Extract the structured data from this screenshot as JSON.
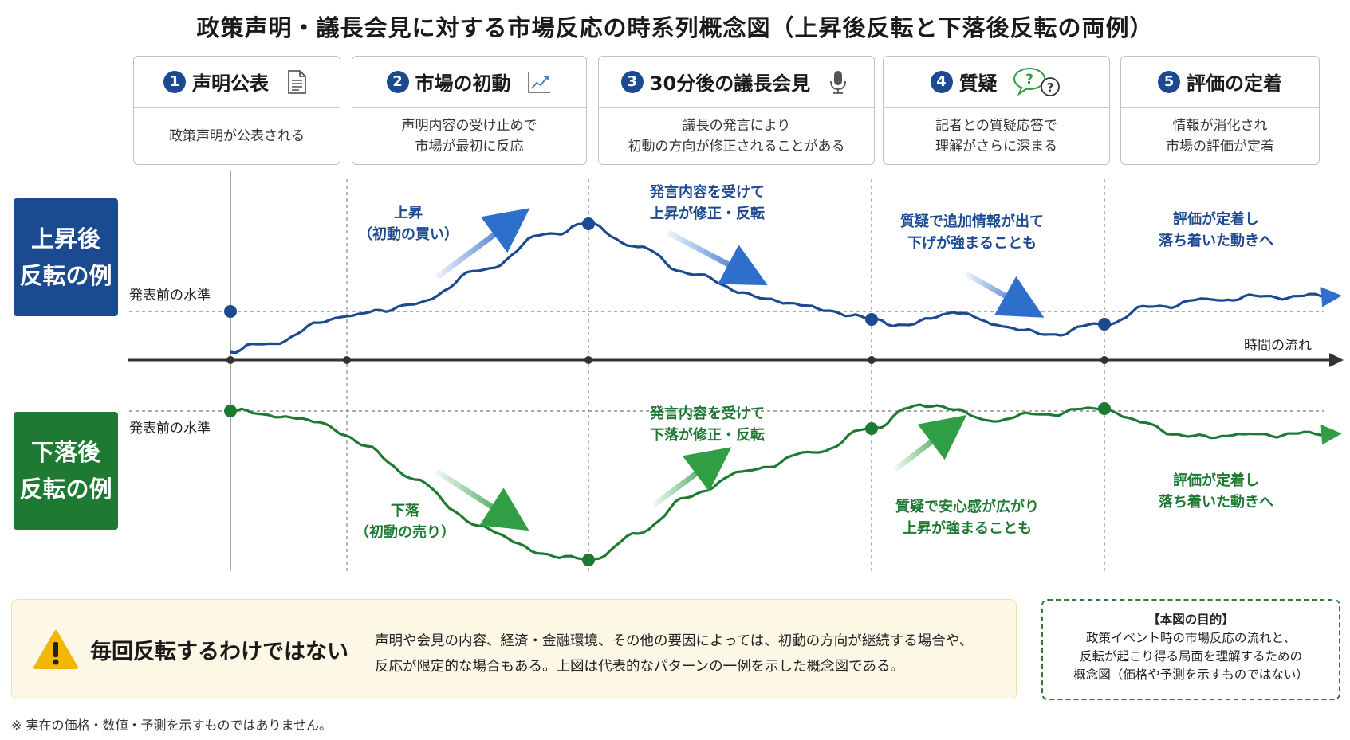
{
  "title": "政策声明・議長会見に対する市場反応の時系列概念図（上昇後反転と下落後反転の両例）",
  "steps": [
    {
      "num": "1",
      "title": "声明公表",
      "icon": "document-icon",
      "desc": [
        "政策声明が公表される"
      ]
    },
    {
      "num": "2",
      "title": "市場の初動",
      "icon": "chart-line-icon",
      "desc": [
        "声明内容の受け止めで",
        "市場が最初に反応"
      ]
    },
    {
      "num": "3",
      "title": "30分後の議長会見",
      "icon": "microphone-icon",
      "desc": [
        "議長の発言により",
        "初動の方向が修正されることがある"
      ]
    },
    {
      "num": "4",
      "title": "質疑",
      "icon": "question-bubbles-icon",
      "desc": [
        "記者との質疑応答で",
        "理解がさらに深まる"
      ]
    },
    {
      "num": "5",
      "title": "評価の定着",
      "icon": "",
      "desc": [
        "情報が消化され",
        "市場の評価が定着"
      ]
    }
  ],
  "up_case": {
    "label": [
      "上昇後",
      "反転の例"
    ],
    "color": "#1b4a91",
    "baseline_label": "発表前の水準",
    "annotations": [
      {
        "lines": [
          "上昇",
          "（初動の買い）"
        ]
      },
      {
        "lines": [
          "発言内容を受けて",
          "上昇が修正・反転"
        ]
      },
      {
        "lines": [
          "質疑で追加情報が出て",
          "下げが強まることも"
        ]
      },
      {
        "lines": [
          "評価が定着し",
          "落ち着いた動きへ"
        ]
      }
    ]
  },
  "down_case": {
    "label": [
      "下落後",
      "反転の例"
    ],
    "color": "#1e7a33",
    "baseline_label": "発表前の水準",
    "annotations": [
      {
        "lines": [
          "下落",
          "（初動の売り）"
        ]
      },
      {
        "lines": [
          "発言内容を受けて",
          "下落が修正・反転"
        ]
      },
      {
        "lines": [
          "質疑で安心感が広がり",
          "上昇が強まることも"
        ]
      },
      {
        "lines": [
          "評価が定着し",
          "落ち着いた動きへ"
        ]
      }
    ]
  },
  "time_axis_label": "時間の流れ",
  "notice": {
    "title": "毎回反転するわけではない",
    "body": [
      "声明や会見の内容、経済・金融環境、その他の要因によっては、初動の方向が継続する場合や、",
      "反応が限定的な場合もある。上図は代表的なパターンの一例を示した概念図である。"
    ]
  },
  "purpose": {
    "title": "【本図の目的】",
    "lines": [
      "政策イベント時の市場反応の流れと、",
      "反転が起こり得る局面を理解するための",
      "概念図（価格や予測を示すものではない）"
    ]
  },
  "footnote": "※ 実在の価格・数値・予測を示すものではありません。"
}
